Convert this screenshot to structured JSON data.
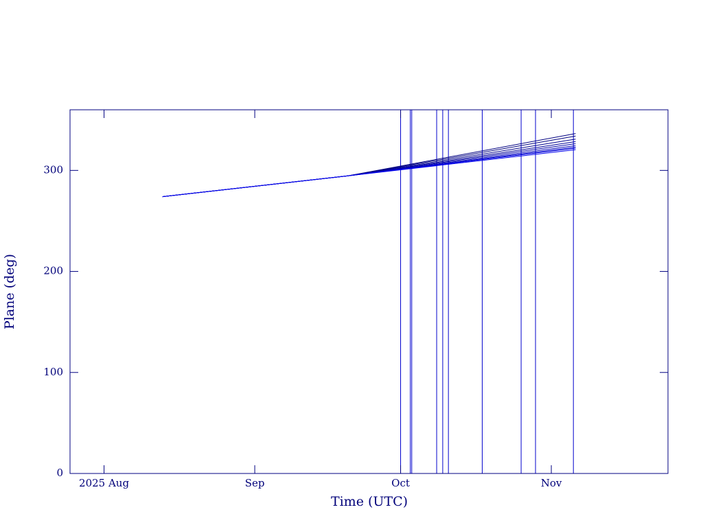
{
  "chart_data": {
    "type": "line",
    "xlabel": "Time (UTC)",
    "ylabel": "Plane (deg)",
    "x": [
      "2025-08-13",
      "2025-09-20",
      "2025-11-06"
    ],
    "series": [
      {
        "color": "#000080",
        "values": [
          274,
          294.5,
          336.5
        ]
      },
      {
        "color": "#000080",
        "values": [
          274,
          294.5,
          334
        ]
      },
      {
        "color": "#00008c",
        "values": [
          274,
          294.5,
          331
        ]
      },
      {
        "color": "#000099",
        "values": [
          274,
          294.5,
          328.5
        ]
      },
      {
        "color": "#0000a8",
        "values": [
          274,
          294.5,
          326.5
        ]
      },
      {
        "color": "#0000bb",
        "values": [
          274,
          294.5,
          324.5
        ]
      },
      {
        "color": "#0000cc",
        "values": [
          274,
          294.5,
          323
        ]
      },
      {
        "color": "#0000dd",
        "values": [
          274,
          294.5,
          322
        ]
      },
      {
        "color": "#0000ee",
        "values": [
          274,
          294.5,
          320.5
        ]
      }
    ],
    "events": [
      "2025-10-01T00:00Z",
      "2025-10-03T00:00Z",
      "2025-10-03T07:00Z",
      "2025-10-08T10:00Z",
      "2025-10-09T16:00Z",
      "2025-10-10T20:00Z",
      "2025-10-17T19:00Z",
      "2025-10-25T19:00Z",
      "2025-10-28T18:00Z",
      "2025-11-05T13:00Z"
    ],
    "event_color": "#0000cc",
    "xlim": [
      "2025-07-25",
      "2025-11-25"
    ],
    "xticks": [
      {
        "value": "2025-08-01",
        "label": "2025 Aug"
      },
      {
        "value": "2025-09-01",
        "label": "Sep"
      },
      {
        "value": "2025-10-01",
        "label": "Oct"
      },
      {
        "value": "2025-11-01",
        "label": "Nov"
      }
    ],
    "ylim": [
      0,
      360
    ],
    "yticks": [
      0,
      100,
      200,
      300
    ],
    "axis_color": "#000080"
  }
}
